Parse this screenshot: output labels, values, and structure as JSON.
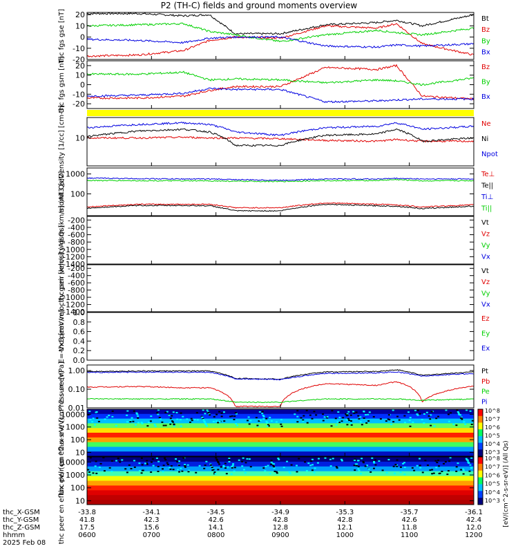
{
  "title": "P2 (TH-C) fields and ground moments overview",
  "date_label": "2025 Feb 08",
  "colors": {
    "black": "#000000",
    "red": "#e00000",
    "green": "#00d000",
    "blue": "#0000e0",
    "yellow": "#ffff00"
  },
  "orbit_table": {
    "rows": [
      {
        "label": "thc_X-GSM",
        "values": [
          "-33.8",
          "-34.1",
          "-34.5",
          "-34.9",
          "-35.3",
          "-35.7",
          "-36.1"
        ]
      },
      {
        "label": "thc_Y-GSM",
        "values": [
          "41.8",
          "42.3",
          "42.6",
          "42.8",
          "42.8",
          "42.6",
          "42.4"
        ]
      },
      {
        "label": "thc_Z-GSM",
        "values": [
          "17.5",
          "15.6",
          "14.1",
          "12.8",
          "12.1",
          "11.8",
          "12.0"
        ]
      },
      {
        "label": "hhmm",
        "values": [
          "0600",
          "0700",
          "0800",
          "0900",
          "1000",
          "1100",
          "1200"
        ]
      }
    ]
  },
  "chart_data": [
    {
      "id": "fgs1",
      "type": "line",
      "ylabel": "thc fgs gse [nT]",
      "ylim": [
        -20,
        22
      ],
      "yticks": [
        "20",
        "10",
        "0",
        "-10",
        "-20"
      ],
      "legend": [
        {
          "name": "Bt",
          "color": "#000000"
        },
        {
          "name": "Bz",
          "color": "#e00000"
        },
        {
          "name": "By",
          "color": "#00d000"
        },
        {
          "name": "Bx",
          "color": "#0000e0"
        }
      ],
      "x": [
        6.0,
        6.8,
        7.5,
        7.9,
        8.3,
        9.0,
        9.7,
        10.5,
        10.8,
        11.2,
        12.0
      ],
      "series": [
        {
          "name": "Bt",
          "color": "#000000",
          "values": [
            21,
            21,
            19,
            20,
            3,
            3,
            11,
            13,
            15,
            10,
            20
          ]
        },
        {
          "name": "Bz",
          "color": "#e00000",
          "values": [
            -17,
            -16,
            -12,
            -3,
            0,
            -1,
            10,
            8,
            12,
            -6,
            -16
          ]
        },
        {
          "name": "By",
          "color": "#00d000",
          "values": [
            10,
            11,
            12,
            5,
            2,
            -4,
            2,
            6,
            4,
            2,
            8
          ]
        },
        {
          "name": "Bx",
          "color": "#0000e0",
          "values": [
            -2,
            -3,
            -5,
            -1,
            0,
            0,
            -8,
            -9,
            -7,
            -8,
            -6
          ]
        }
      ]
    },
    {
      "id": "fgs2",
      "type": "line",
      "ylabel": "thc fgs gsm [nT]",
      "ylim": [
        -25,
        25
      ],
      "yticks": [
        "20",
        "10",
        "0",
        "-10",
        "-20"
      ],
      "legend": [
        {
          "name": "Bz",
          "color": "#e00000"
        },
        {
          "name": "By",
          "color": "#00d000"
        },
        {
          "name": "Bx",
          "color": "#0000e0"
        }
      ],
      "x": [
        6.0,
        6.8,
        7.5,
        7.9,
        8.3,
        9.0,
        9.7,
        10.5,
        10.8,
        11.2,
        12.0
      ],
      "series": [
        {
          "name": "Bz",
          "color": "#e00000",
          "values": [
            -14,
            -14,
            -12,
            -6,
            -2,
            -2,
            18,
            16,
            20,
            -12,
            -15
          ]
        },
        {
          "name": "By",
          "color": "#00d000",
          "values": [
            11,
            11,
            13,
            5,
            6,
            5,
            2,
            5,
            4,
            0,
            7
          ]
        },
        {
          "name": "Bx",
          "color": "#0000e0",
          "values": [
            -12,
            -11,
            -9,
            -4,
            -5,
            -5,
            -18,
            -17,
            -16,
            -15,
            -15
          ]
        }
      ]
    },
    {
      "id": "density",
      "type": "line",
      "ylabel": "Density [1/cc] [cm-3]",
      "scale": "log",
      "ylim": [
        1.5,
        40
      ],
      "yticks": [
        "10"
      ],
      "legend": [
        {
          "name": "Ne",
          "color": "#e00000"
        },
        {
          "name": "Ni",
          "color": "#000000"
        },
        {
          "name": "Npot",
          "color": "#0000e0"
        }
      ],
      "x": [
        6.0,
        6.8,
        7.5,
        7.9,
        8.3,
        9.0,
        9.7,
        10.5,
        10.8,
        11.2,
        12.0
      ],
      "series": [
        {
          "name": "Ne",
          "color": "#e00000",
          "values": [
            10,
            10,
            10.5,
            10,
            10,
            9.5,
            8.5,
            8,
            9,
            8,
            8
          ]
        },
        {
          "name": "Ni",
          "color": "#000000",
          "values": [
            11,
            16,
            18,
            15,
            6,
            6,
            12,
            13,
            18,
            8,
            10
          ]
        },
        {
          "name": "Npot",
          "color": "#0000e0",
          "values": [
            20,
            25,
            28,
            25,
            15,
            12,
            20,
            22,
            28,
            18,
            22
          ]
        }
      ]
    },
    {
      "id": "mom",
      "type": "line",
      "ylabel": "momt3 [eV]",
      "scale": "log",
      "ylim": [
        8,
        2000
      ],
      "yticks": [
        "1000",
        "100"
      ],
      "legend": [
        {
          "name": "Te⊥",
          "color": "#e00000"
        },
        {
          "name": "Te||",
          "color": "#000000"
        },
        {
          "name": "Ti⊥",
          "color": "#0000e0"
        },
        {
          "name": "Ti||",
          "color": "#00d000"
        }
      ],
      "x": [
        6.0,
        6.8,
        7.5,
        7.9,
        8.3,
        9.0,
        9.7,
        10.5,
        10.8,
        11.2,
        12.0
      ],
      "series": [
        {
          "name": "Te⊥",
          "color": "#e00000",
          "values": [
            22,
            30,
            30,
            30,
            20,
            20,
            35,
            30,
            28,
            22,
            28
          ]
        },
        {
          "name": "Te||",
          "color": "#000000",
          "values": [
            19,
            26,
            26,
            25,
            14,
            14,
            30,
            25,
            24,
            18,
            24
          ]
        },
        {
          "name": "Ti⊥",
          "color": "#0000e0",
          "values": [
            620,
            580,
            560,
            560,
            520,
            480,
            560,
            560,
            600,
            560,
            560
          ]
        },
        {
          "name": "Ti||",
          "color": "#00d000",
          "values": [
            470,
            460,
            450,
            450,
            430,
            420,
            460,
            470,
            520,
            450,
            460
          ]
        }
      ]
    },
    {
      "id": "peirv",
      "type": "line",
      "ylabel": "thc peir velocity gsm [km/s] (All Qs)",
      "ylim": [
        -1400,
        -100
      ],
      "yticks": [
        "-200",
        "-400",
        "-600",
        "-800",
        "-1000",
        "-1200",
        "-1400"
      ],
      "legend": [
        {
          "name": "Vt",
          "color": "#000000"
        },
        {
          "name": "Vz",
          "color": "#e00000"
        },
        {
          "name": "Vy",
          "color": "#00d000"
        },
        {
          "name": "Vx",
          "color": "#0000e0"
        }
      ],
      "series": []
    },
    {
      "id": "peerv",
      "type": "line",
      "ylabel": "thc peer velocity gsm [km/s] (All Qs)",
      "ylim": [
        -1400,
        -100
      ],
      "yticks": [
        "-200",
        "-400",
        "-600",
        "-800",
        "-1000",
        "-1200",
        "-1400"
      ],
      "legend": [
        {
          "name": "Vt",
          "color": "#000000"
        },
        {
          "name": "Vz",
          "color": "#e00000"
        },
        {
          "name": "Vy",
          "color": "#00d000"
        },
        {
          "name": "Vx",
          "color": "#0000e0"
        }
      ],
      "series": []
    },
    {
      "id": "efield",
      "type": "line",
      "ylabel": "E=-VxB [mV/m]",
      "ylim": [
        0,
        1
      ],
      "yticks": [
        "1.0",
        "0.8",
        "0.6",
        "0.4",
        "0.2",
        "0.0"
      ],
      "legend": [
        {
          "name": "Ez",
          "color": "#e00000"
        },
        {
          "name": "Ey",
          "color": "#00d000"
        },
        {
          "name": "Ex",
          "color": "#0000e0"
        }
      ],
      "series": []
    },
    {
      "id": "pressure",
      "type": "line",
      "ylabel": "Pressure [nPa]",
      "scale": "log",
      "ylim": [
        0.01,
        2
      ],
      "yticks": [
        "1.00",
        "0.10",
        "0.01"
      ],
      "legend": [
        {
          "name": "Pt",
          "color": "#000000"
        },
        {
          "name": "Pb",
          "color": "#e00000"
        },
        {
          "name": "Pe",
          "color": "#00d000"
        },
        {
          "name": "Pi",
          "color": "#0000e0"
        }
      ],
      "x": [
        6.0,
        6.8,
        7.5,
        7.9,
        8.3,
        9.0,
        9.7,
        10.5,
        10.8,
        11.2,
        12.0
      ],
      "series": [
        {
          "name": "Pt",
          "color": "#000000",
          "values": [
            0.9,
            0.95,
            0.95,
            0.95,
            0.38,
            0.35,
            0.85,
            0.9,
            1.1,
            0.55,
            0.85
          ]
        },
        {
          "name": "Pb",
          "color": "#e00000",
          "values": [
            0.13,
            0.14,
            0.12,
            0.12,
            0.012,
            0.012,
            0.2,
            0.16,
            0.25,
            0.02,
            0.15
          ]
        },
        {
          "name": "Pe",
          "color": "#00d000",
          "values": [
            0.03,
            0.03,
            0.03,
            0.03,
            0.02,
            0.02,
            0.03,
            0.03,
            0.03,
            0.025,
            0.03
          ]
        },
        {
          "name": "Pi",
          "color": "#0000e0",
          "values": [
            0.8,
            0.82,
            0.82,
            0.82,
            0.36,
            0.33,
            0.7,
            0.75,
            0.85,
            0.5,
            0.7
          ]
        }
      ]
    },
    {
      "id": "peir_spec",
      "type": "heatmap",
      "ylabel": "thc peir en eflux eV/ (cm^2-s-sr-eV)",
      "scale": "log",
      "ylim": [
        5,
        25000
      ],
      "yticks": [
        "10000",
        "1000",
        "100",
        "10"
      ]
    },
    {
      "id": "peer_spec",
      "type": "heatmap",
      "ylabel": "thc peer en eflux eV/ (cm^2-s-sr-eV)",
      "scale": "log",
      "ylim": [
        5,
        25000
      ],
      "yticks": [
        "10000",
        "1000",
        "100",
        "10"
      ]
    }
  ],
  "colorbar": {
    "label": "[eV/(cm^2-s-sr-eV)] (All Qs)",
    "ticks": [
      "10^8",
      "10^7",
      "10^6",
      "10^5",
      "10^4",
      "10^3"
    ]
  }
}
